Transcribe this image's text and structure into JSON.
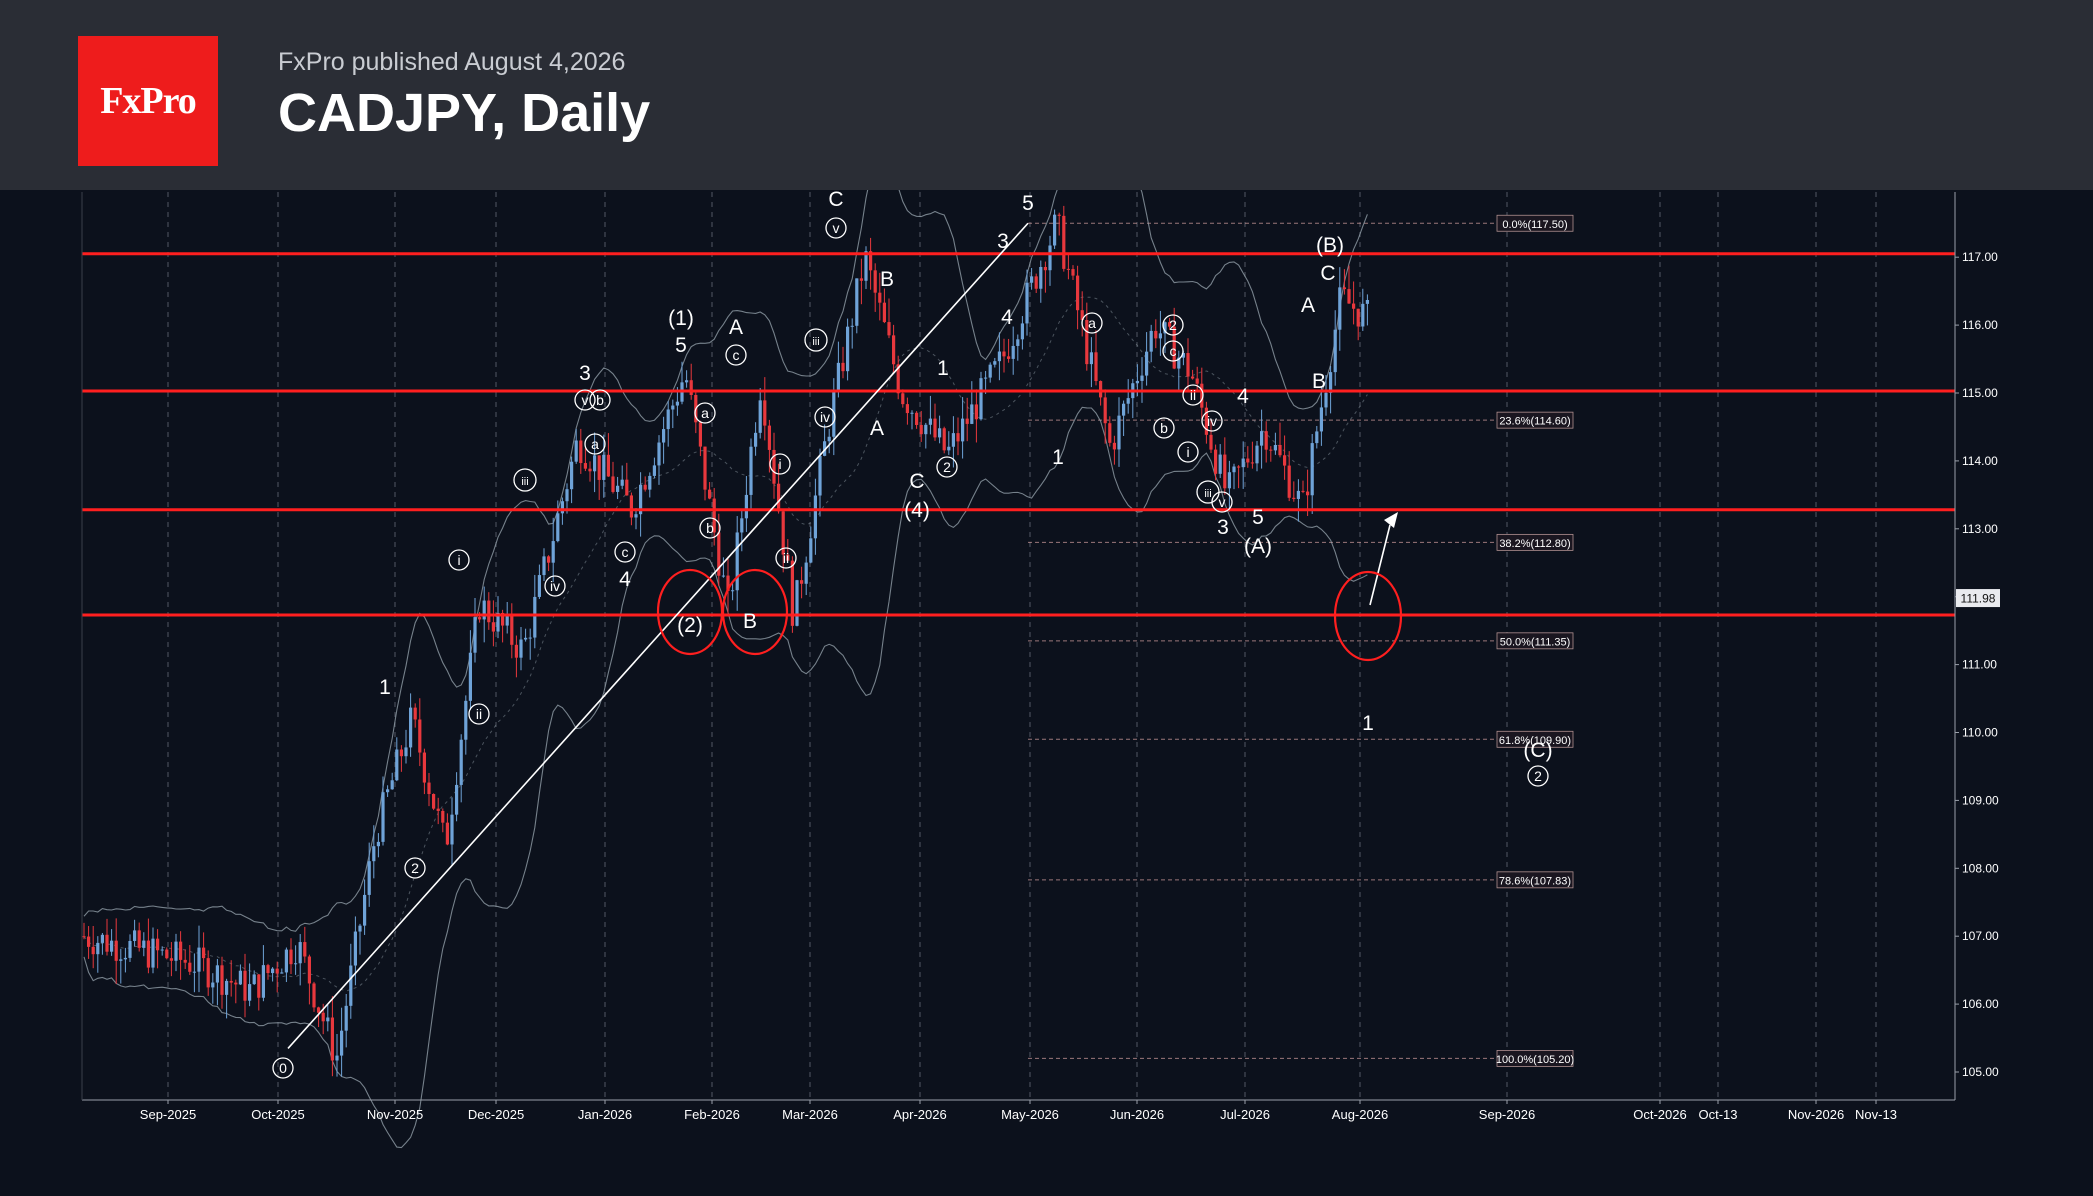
{
  "header": {
    "logo": "FxPro",
    "published": "FxPro published August 4,2026",
    "title": "CADJPY, Daily"
  },
  "colors": {
    "up": "#6fa3d8",
    "down": "#e8383d",
    "level": "#ff1f1f",
    "bollinger": "#9aa7b0",
    "fib_zone": "#3a2a36"
  },
  "chart_data": {
    "type": "candlestick",
    "title": "CADJPY, Daily",
    "ylim": [
      104.7,
      118.5
    ],
    "price_ticks": [
      "105.00",
      "106.00",
      "107.00",
      "108.00",
      "109.00",
      "110.00",
      "111.00",
      "112.00",
      "113.00",
      "114.00",
      "115.00",
      "116.00",
      "117.00"
    ],
    "current_price": "111.98",
    "month_labels": [
      "Sep-2025",
      "Oct-2025",
      "Nov-2025",
      "Dec-2025",
      "Jan-2026",
      "Feb-2026",
      "Mar-2026",
      "Apr-2026",
      "May-2026",
      "Jun-2026",
      "Jul-2026",
      "Aug-2026",
      "Sep-2026",
      "Oct-2026",
      "Oct-13",
      "Nov-2026",
      "Nov-13"
    ],
    "horizontal_levels": [
      117.05,
      115.03,
      113.28,
      111.73
    ],
    "fibonacci": [
      {
        "label": "0.0%(117.50)",
        "price": 117.5
      },
      {
        "label": "23.6%(114.60)",
        "price": 114.6
      },
      {
        "label": "38.2%(112.80)",
        "price": 112.8
      },
      {
        "label": "50.0%(111.35)",
        "price": 111.35
      },
      {
        "label": "61.8%(109.90)",
        "price": 109.9
      },
      {
        "label": "78.6%(107.83)",
        "price": 107.83
      },
      {
        "label": "100.0%(105.20)",
        "price": 105.2
      }
    ],
    "trendline": {
      "from": [
        "Oct-2025",
        105.2
      ],
      "to": [
        "May-2026",
        117.5
      ]
    },
    "price_path": [
      [
        "Aug-2025",
        107.0
      ],
      [
        "Sep-2025",
        106.6
      ],
      [
        "Sep-2025",
        106.2
      ],
      [
        "Oct-2025",
        106.9
      ],
      [
        "Oct-2025",
        105.2
      ],
      [
        "Oct-2025",
        108.5
      ],
      [
        "Nov-2025",
        110.2
      ],
      [
        "Nov-2025",
        108.3
      ],
      [
        "Nov-2025",
        111.9
      ],
      [
        "Dec-2025",
        111.2
      ],
      [
        "Dec-2025",
        114.3
      ],
      [
        "Jan-2026",
        113.3
      ],
      [
        "Jan-2026",
        115.3
      ],
      [
        "Feb-2026",
        111.8
      ],
      [
        "Feb-2026",
        115.2
      ],
      [
        "Feb-2026",
        111.7
      ],
      [
        "Mar-2026",
        114.5
      ],
      [
        "Mar-2026",
        117.0
      ],
      [
        "Mar-2026",
        115.0
      ],
      [
        "Apr-2026",
        114.1
      ],
      [
        "Apr-2026",
        115.5
      ],
      [
        "May-2026",
        117.5
      ],
      [
        "May-2026",
        114.2
      ],
      [
        "Jun-2026",
        116.0
      ],
      [
        "Jun-2026",
        115.3
      ],
      [
        "Jun-2026",
        113.5
      ],
      [
        "Jul-2026",
        114.5
      ],
      [
        "Jul-2026",
        113.3
      ],
      [
        "Jul-2026",
        116.4
      ],
      [
        "Aug-2026",
        115.8
      ],
      [
        "Aug-2026",
        111.9
      ]
    ],
    "wave_labels": [
      {
        "t": "0",
        "circled": true
      },
      {
        "t": "1"
      },
      {
        "t": "2"
      },
      {
        "t": "i",
        "circled": true
      },
      {
        "t": "ii",
        "circled": true
      },
      {
        "t": "iii",
        "circled": true
      },
      {
        "t": "iv",
        "circled": true
      },
      {
        "t": "v",
        "circled": true
      },
      {
        "t": "3"
      },
      {
        "t": "a",
        "circled": true
      },
      {
        "t": "b",
        "circled": true
      },
      {
        "t": "c",
        "circled": true
      },
      {
        "t": "4"
      },
      {
        "t": "(1)"
      },
      {
        "t": "5"
      },
      {
        "t": "(2)"
      },
      {
        "t": "A"
      },
      {
        "t": "B"
      },
      {
        "t": "C"
      },
      {
        "t": "(4)"
      },
      {
        "t": "(A)"
      },
      {
        "t": "(B)"
      },
      {
        "t": "(C)"
      },
      {
        "t": "2",
        "circled": true
      }
    ]
  }
}
